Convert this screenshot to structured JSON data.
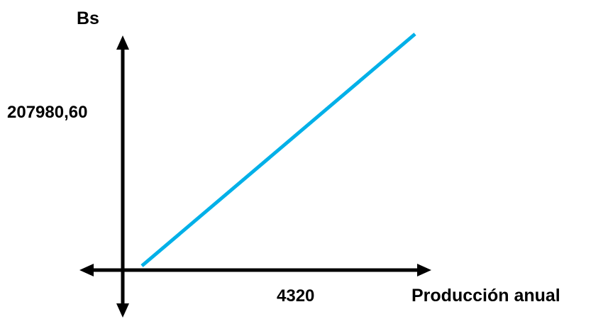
{
  "chart_data": {
    "type": "line",
    "title": "",
    "ylabel": "Bs",
    "xlabel": "Producción anual",
    "y_tick_label": "207980,60",
    "x_tick_label": "4320",
    "series": [
      {
        "values": [
          {
            "x": 0,
            "y": 0
          },
          {
            "x": 7800,
            "y": 313000
          }
        ]
      }
    ],
    "xlim": [
      0,
      7800
    ],
    "ylim": [
      0,
      313000
    ],
    "grid": false,
    "legend": "none",
    "line_color": "#00b0e8",
    "axis_color": "#000000"
  }
}
